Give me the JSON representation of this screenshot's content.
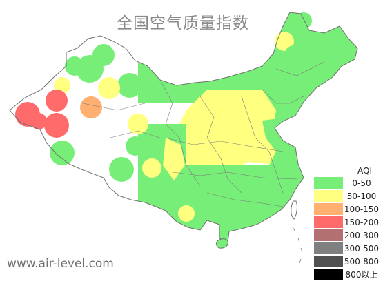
{
  "title": "全国空气质量指数",
  "site": "www.air-level.com",
  "colors": {
    "good": "#77ee77",
    "moderate": "#ffff80",
    "usg": "#ffb070",
    "unhealthy": "#ff6a6a",
    "very_unhealthy": "#b37070",
    "hazardous": "#808080",
    "hazardous2": "#505050",
    "beyond": "#000000",
    "outline": "#707070"
  },
  "legend": {
    "title": "AQI",
    "items": [
      {
        "label": "0-50",
        "color": "#77ee77"
      },
      {
        "label": "50-100",
        "color": "#ffff80"
      },
      {
        "label": "100-150",
        "color": "#ffb070"
      },
      {
        "label": "150-200",
        "color": "#ff6a6a"
      },
      {
        "label": "200-300",
        "color": "#b37070"
      },
      {
        "label": "300-500",
        "color": "#808080"
      },
      {
        "label": "500-800",
        "color": "#505050"
      },
      {
        "label": "800以上",
        "color": "#000000"
      }
    ]
  },
  "regions": [
    {
      "id": "northeast",
      "level": "good"
    },
    {
      "id": "north-china",
      "level": "moderate"
    },
    {
      "id": "central-plain",
      "level": "moderate"
    },
    {
      "id": "east-coast",
      "level": "good"
    },
    {
      "id": "south-china",
      "level": "good"
    },
    {
      "id": "southwest",
      "level": "good"
    },
    {
      "id": "xinjiang-north",
      "level": "good"
    },
    {
      "id": "xinjiang-west",
      "level": "unhealthy"
    },
    {
      "id": "xinjiang-south",
      "level": "usg"
    },
    {
      "id": "tibet",
      "level": "good"
    },
    {
      "id": "inner-mongolia",
      "level": "good"
    },
    {
      "id": "qinghai",
      "level": "moderate"
    }
  ]
}
